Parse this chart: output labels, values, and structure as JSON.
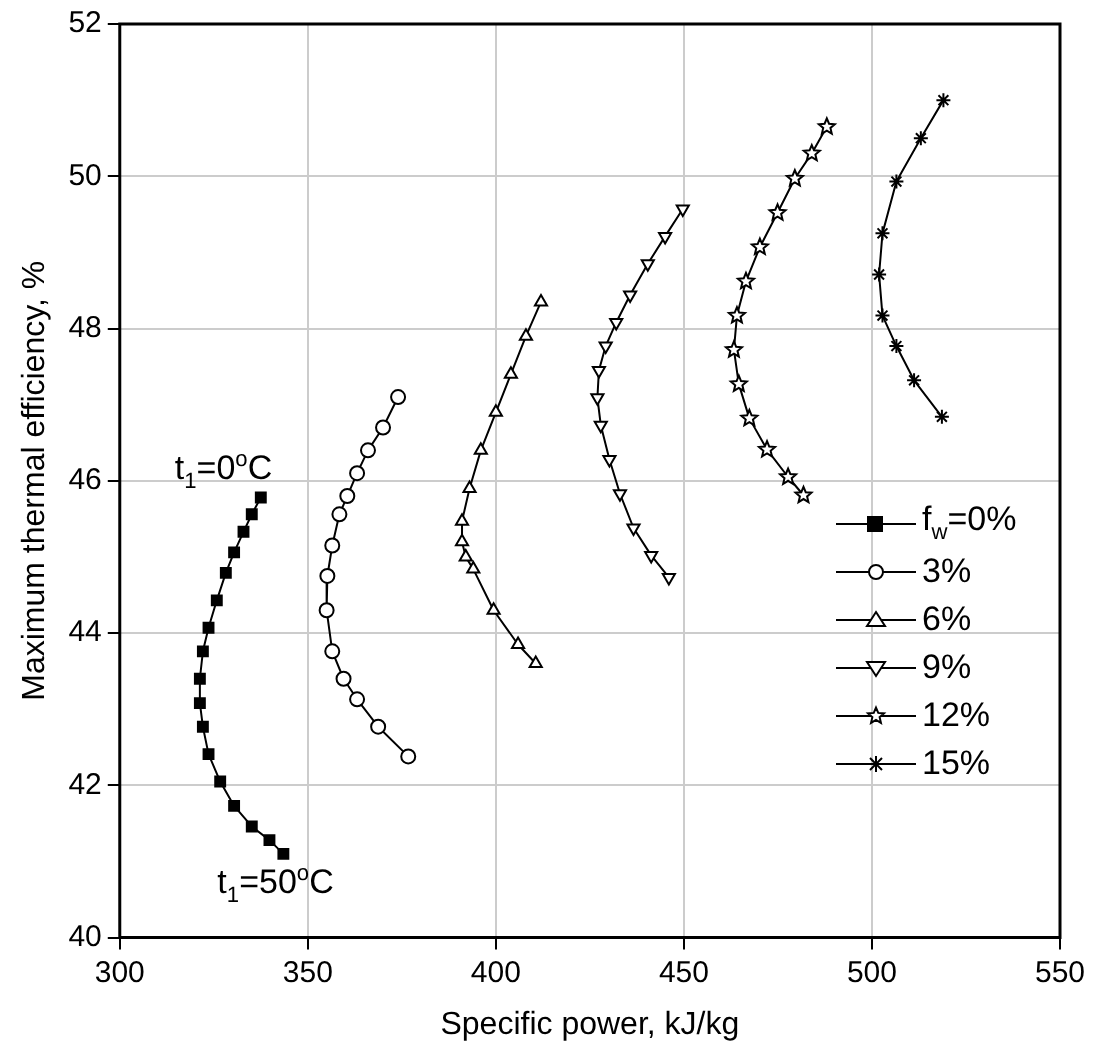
{
  "chart_data": {
    "type": "line",
    "xlabel": "Specific power, kJ/kg",
    "ylabel": "Maximum thermal efficiency, %",
    "xlim": [
      300,
      550
    ],
    "xticks": [
      300,
      350,
      400,
      450,
      500,
      550
    ],
    "ylim": [
      40,
      52
    ],
    "yticks": [
      40,
      42,
      44,
      46,
      48,
      50,
      52
    ],
    "grid": true,
    "legend": "right",
    "line_style": "solid",
    "annotations": [
      {
        "text": "t$_{1}$=0$^{o}$C",
        "x": 337.5,
        "y": 45.78
      },
      {
        "text": "t$_{1}$=50$^{o}$C",
        "x": 343.5,
        "y": 41.1
      }
    ],
    "series": [
      {
        "name": "f$_{w}$=0%",
        "color": "#000000",
        "marker": "square",
        "x": [
          337.5,
          335.1,
          332.9,
          330.4,
          328.2,
          325.8,
          323.6,
          322.1,
          321.3,
          321.3,
          322.1,
          323.6,
          326.7,
          330.4,
          335.1,
          339.8,
          343.5
        ],
        "values": [
          45.78,
          45.56,
          45.33,
          45.06,
          44.79,
          44.43,
          44.07,
          43.76,
          43.4,
          43.08,
          42.77,
          42.41,
          42.05,
          41.73,
          41.46,
          41.28,
          41.1
        ]
      },
      {
        "name": "3%",
        "color": "#000000",
        "marker": "circle",
        "x": [
          374,
          370,
          366,
          363.1,
          360.5,
          358.4,
          356.5,
          355.2,
          355,
          356.5,
          359.5,
          363.1,
          368.7,
          376.7
        ],
        "values": [
          47.1,
          46.7,
          46.4,
          46.1,
          45.8,
          45.56,
          45.15,
          44.75,
          44.3,
          43.76,
          43.4,
          43.13,
          42.77,
          42.38
        ]
      },
      {
        "name": "6%",
        "color": "#000000",
        "marker": "triangle",
        "x": [
          412,
          408,
          404,
          400,
          396,
          393,
          391,
          391,
          392,
          394,
          399.4,
          405.9,
          410.6
        ],
        "values": [
          48.35,
          47.9,
          47.4,
          46.9,
          46.4,
          45.9,
          45.47,
          45.2,
          45,
          44.84,
          44.3,
          43.85,
          43.6
        ]
      },
      {
        "name": "9%",
        "color": "#000000",
        "marker": "triangle-down",
        "x": [
          449.7,
          445,
          440.4,
          435.7,
          432,
          429.2,
          427.4,
          427,
          427.9,
          430.2,
          433,
          436.6,
          441.3,
          446
        ],
        "values": [
          49.57,
          49.21,
          48.85,
          48.44,
          48.08,
          47.77,
          47.45,
          47.09,
          46.73,
          46.28,
          45.83,
          45.38,
          45.02,
          44.73
        ]
      },
      {
        "name": "12%",
        "color": "#000000",
        "marker": "star",
        "x": [
          488,
          484,
          479.5,
          474.9,
          470.2,
          466.5,
          464.1,
          463.3,
          464.6,
          467.4,
          472.1,
          477.7,
          481.8
        ],
        "values": [
          50.65,
          50.3,
          49.97,
          49.52,
          49.07,
          48.62,
          48.17,
          47.72,
          47.27,
          46.82,
          46.41,
          46.05,
          45.81
        ]
      },
      {
        "name": "15%",
        "color": "#000000",
        "marker": "cross",
        "x": [
          519,
          513,
          506.5,
          502.8,
          501.9,
          502.8,
          506.5,
          511.2,
          518.6
        ],
        "values": [
          51,
          50.5,
          49.93,
          49.25,
          48.71,
          48.17,
          47.77,
          47.32,
          46.84
        ]
      }
    ]
  }
}
